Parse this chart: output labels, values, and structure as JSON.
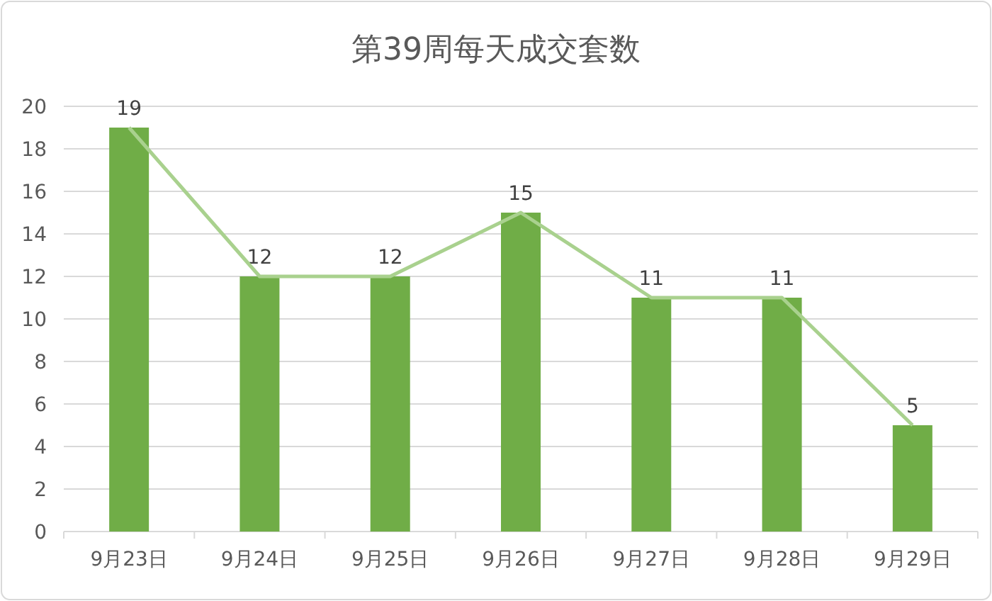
{
  "chart_data": {
    "type": "bar",
    "title": "第39周每天成交套数",
    "categories": [
      "9月23日",
      "9月24日",
      "9月25日",
      "9月26日",
      "9月27日",
      "9月28日",
      "9月29日"
    ],
    "series": [
      {
        "color": "#70ad47",
        "values": [
          19,
          12,
          12,
          15,
          11,
          11,
          5
        ],
        "data_labels": true
      },
      {
        "type": "line",
        "color": "#a9d18e",
        "values": [
          19,
          12,
          12,
          15,
          11,
          11,
          5
        ]
      }
    ],
    "ylim": [
      0,
      20
    ],
    "yticks": [
      0,
      2,
      4,
      6,
      8,
      10,
      12,
      14,
      16,
      18,
      20
    ],
    "grid": "y"
  }
}
